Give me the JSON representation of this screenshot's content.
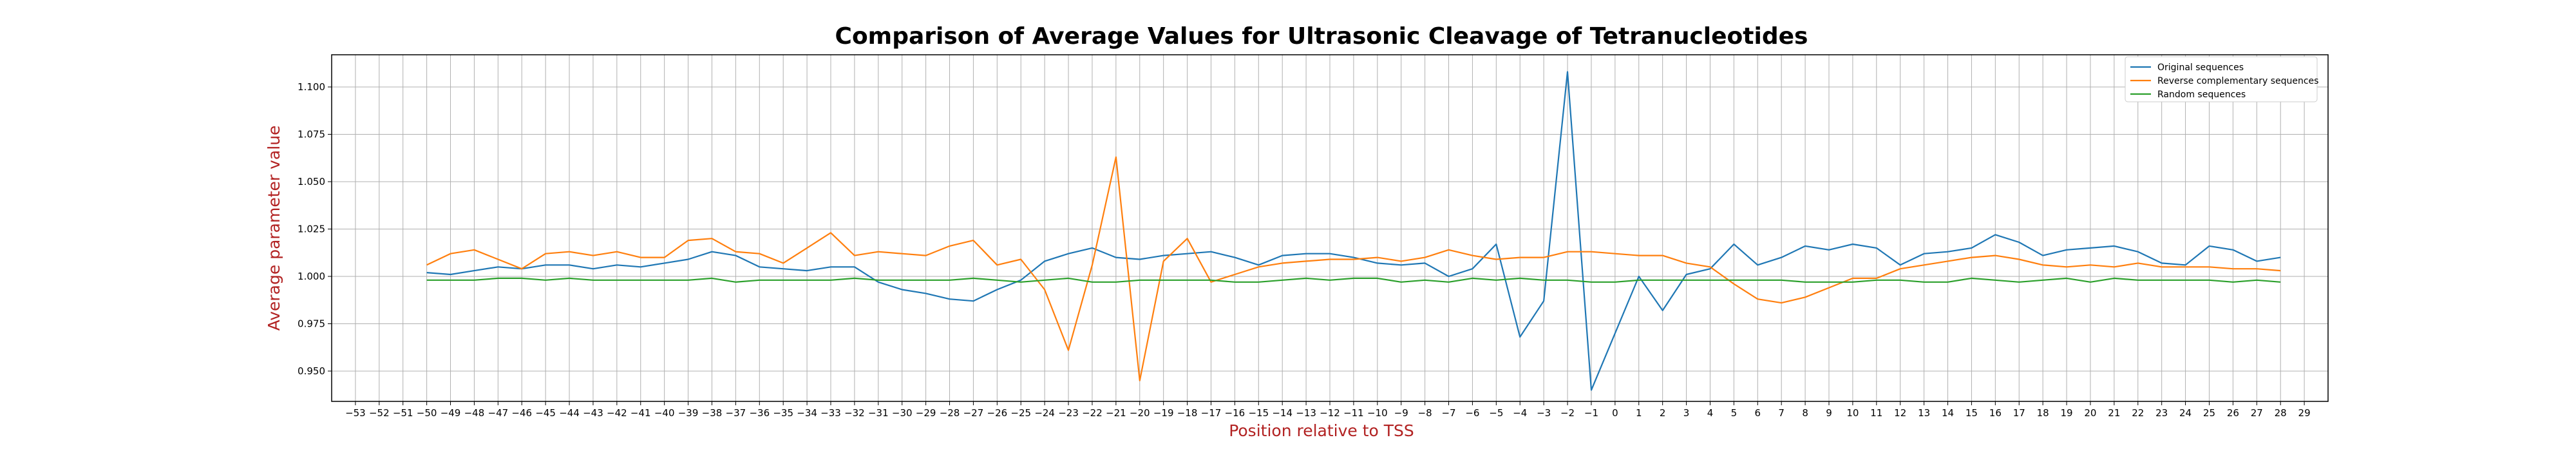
{
  "chart_data": {
    "type": "line",
    "title": "Comparison of Average Values for Ultrasonic Cleavage of Tetranucleotides",
    "xlabel": "Position relative to TSS",
    "ylabel": "Average parameter value",
    "xlim": [
      -54,
      30
    ],
    "ylim": [
      0.934,
      1.117
    ],
    "x_ticks": [
      -53,
      -52,
      -51,
      -50,
      -49,
      -48,
      -47,
      -46,
      -45,
      -44,
      -43,
      -42,
      -41,
      -40,
      -39,
      -38,
      -37,
      -36,
      -35,
      -34,
      -33,
      -32,
      -31,
      -30,
      -29,
      -28,
      -27,
      -26,
      -25,
      -24,
      -23,
      -22,
      -21,
      -20,
      -19,
      -18,
      -17,
      -16,
      -15,
      -14,
      -13,
      -12,
      -11,
      -10,
      -9,
      -8,
      -7,
      -6,
      -5,
      -4,
      -3,
      -2,
      -1,
      0,
      1,
      2,
      3,
      4,
      5,
      6,
      7,
      8,
      9,
      10,
      11,
      12,
      13,
      14,
      15,
      16,
      17,
      18,
      19,
      20,
      21,
      22,
      23,
      24,
      25,
      26,
      27,
      28,
      29
    ],
    "y_ticks": [
      0.95,
      0.975,
      1.0,
      1.025,
      1.05,
      1.075,
      1.1
    ],
    "y_tick_labels": [
      "0.950",
      "0.975",
      "1.000",
      "1.025",
      "1.050",
      "1.075",
      "1.100"
    ],
    "grid": true,
    "legend_position": "top-right",
    "x": [
      -50,
      -49,
      -48,
      -47,
      -46,
      -45,
      -44,
      -43,
      -42,
      -41,
      -40,
      -39,
      -38,
      -37,
      -36,
      -35,
      -34,
      -33,
      -32,
      -31,
      -30,
      -29,
      -28,
      -27,
      -26,
      -25,
      -24,
      -23,
      -22,
      -21,
      -20,
      -19,
      -18,
      -17,
      -16,
      -15,
      -14,
      -13,
      -12,
      -11,
      -10,
      -9,
      -8,
      -7,
      -6,
      -5,
      -4,
      -3,
      -2,
      -1,
      0,
      1,
      2,
      3,
      4,
      5,
      6,
      7,
      8,
      9,
      10,
      11,
      12,
      13,
      14,
      15,
      16,
      17,
      18,
      19,
      20,
      21,
      22,
      23,
      24,
      25,
      26,
      27,
      28
    ],
    "series": [
      {
        "name": "Original sequences",
        "color": "#1f77b4",
        "values": [
          1.002,
          1.001,
          1.003,
          1.005,
          1.004,
          1.006,
          1.006,
          1.004,
          1.006,
          1.005,
          1.007,
          1.009,
          1.013,
          1.011,
          1.005,
          1.004,
          1.003,
          1.005,
          1.005,
          0.997,
          0.993,
          0.991,
          0.988,
          0.987,
          0.993,
          0.998,
          1.008,
          1.012,
          1.015,
          1.01,
          1.009,
          1.011,
          1.012,
          1.013,
          1.01,
          1.006,
          1.011,
          1.012,
          1.012,
          1.01,
          1.007,
          1.006,
          1.007,
          1.0,
          1.004,
          1.017,
          0.968,
          0.987,
          1.108,
          0.94,
          0.97,
          1.0,
          0.982,
          1.001,
          1.004,
          1.017,
          1.006,
          1.01,
          1.016,
          1.014,
          1.017,
          1.015,
          1.006,
          1.012,
          1.013,
          1.015,
          1.022,
          1.018,
          1.011,
          1.014,
          1.015,
          1.016,
          1.013,
          1.007,
          1.006,
          1.016,
          1.014,
          1.008,
          1.01
        ]
      },
      {
        "name": "Reverse complementary sequences",
        "color": "#ff7f0e",
        "values": [
          1.006,
          1.012,
          1.014,
          1.009,
          1.004,
          1.012,
          1.013,
          1.011,
          1.013,
          1.01,
          1.01,
          1.019,
          1.02,
          1.013,
          1.012,
          1.007,
          1.015,
          1.023,
          1.011,
          1.013,
          1.012,
          1.011,
          1.016,
          1.019,
          1.006,
          1.009,
          0.993,
          0.961,
          1.006,
          1.063,
          0.945,
          1.008,
          1.02,
          0.997,
          1.001,
          1.005,
          1.007,
          1.008,
          1.009,
          1.009,
          1.01,
          1.008,
          1.01,
          1.014,
          1.011,
          1.009,
          1.01,
          1.01,
          1.013,
          1.013,
          1.012,
          1.011,
          1.011,
          1.007,
          1.005,
          0.996,
          0.988,
          0.986,
          0.989,
          0.994,
          0.999,
          0.999,
          1.004,
          1.006,
          1.008,
          1.01,
          1.011,
          1.009,
          1.006,
          1.005,
          1.006,
          1.005,
          1.007,
          1.005,
          1.005,
          1.005,
          1.004,
          1.004,
          1.003
        ]
      },
      {
        "name": "Random sequences",
        "color": "#2ca02c",
        "values": [
          0.998,
          0.998,
          0.998,
          0.999,
          0.999,
          0.998,
          0.999,
          0.998,
          0.998,
          0.998,
          0.998,
          0.998,
          0.999,
          0.997,
          0.998,
          0.998,
          0.998,
          0.998,
          0.999,
          0.998,
          0.998,
          0.998,
          0.998,
          0.999,
          0.998,
          0.997,
          0.998,
          0.999,
          0.997,
          0.997,
          0.998,
          0.998,
          0.998,
          0.998,
          0.997,
          0.997,
          0.998,
          0.999,
          0.998,
          0.999,
          0.999,
          0.997,
          0.998,
          0.997,
          0.999,
          0.998,
          0.999,
          0.998,
          0.998,
          0.997,
          0.997,
          0.998,
          0.998,
          0.998,
          0.998,
          0.998,
          0.998,
          0.998,
          0.997,
          0.997,
          0.997,
          0.998,
          0.998,
          0.997,
          0.997,
          0.999,
          0.998,
          0.997,
          0.998,
          0.999,
          0.997,
          0.999,
          0.998,
          0.998,
          0.998,
          0.998,
          0.997,
          0.998,
          0.997
        ]
      }
    ]
  }
}
